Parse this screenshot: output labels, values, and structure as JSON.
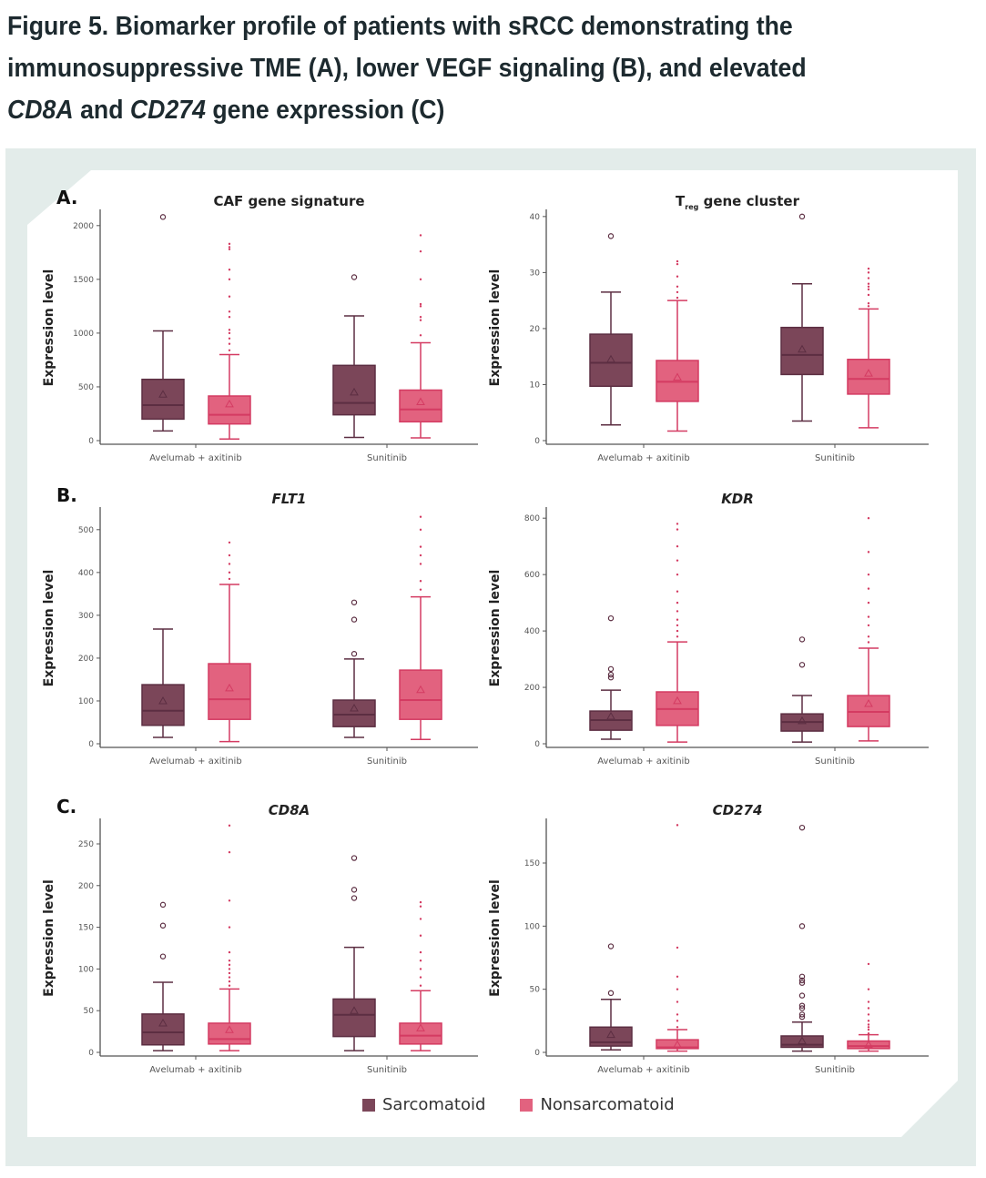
{
  "figure_title": {
    "line1": "Figure 5. Biomarker profile of patients with sRCC demonstrating the",
    "line2": "immunosuppressive TME (A), lower VEGF signaling (B), and elevated",
    "line3_gene1": "CD8A",
    "line3_mid": " and ",
    "line3_gene2": "CD274",
    "line3_end": " gene expression (C)"
  },
  "colors": {
    "Sarcomatoid": {
      "fill": "#7b4659",
      "stroke": "#5c2e42"
    },
    "Nonsarcomatoid": {
      "fill": "#e2627f",
      "stroke": "#d43b62"
    },
    "panel_background": "#e3ecea"
  },
  "legend": {
    "items": [
      "Sarcomatoid",
      "Nonsarcomatoid"
    ],
    "placement": "bottom"
  },
  "chart_data": [
    {
      "type": "box",
      "panel_letter": "A.",
      "title": "CAF gene signature",
      "ylabel": "Expression level",
      "ylim": [
        0,
        2100
      ],
      "yticks": [
        0,
        500,
        1000,
        1500,
        2000
      ],
      "categories": [
        "Avelumab + axitinib",
        "Sunitinib"
      ],
      "series": [
        {
          "name": "Sarcomatoid",
          "boxes": [
            {
              "low": 90,
              "q1": 200,
              "median": 330,
              "q3": 570,
              "high": 1020,
              "mean": 430,
              "outliers": [
                2080
              ]
            },
            {
              "low": 30,
              "q1": 240,
              "median": 350,
              "q3": 700,
              "high": 1160,
              "mean": 450,
              "outliers": [
                1520
              ]
            }
          ]
        },
        {
          "name": "Nonsarcomatoid",
          "boxes": [
            {
              "low": 15,
              "q1": 155,
              "median": 240,
              "q3": 415,
              "high": 800,
              "mean": 340,
              "outliers": [
                840,
                900,
                950,
                1000,
                1030,
                1150,
                1200,
                1340,
                1500,
                1590,
                1780,
                1800,
                1830
              ]
            },
            {
              "low": 25,
              "q1": 175,
              "median": 290,
              "q3": 470,
              "high": 910,
              "mean": 360,
              "outliers": [
                980,
                1120,
                1150,
                1250,
                1270,
                1500,
                1760,
                1910
              ]
            }
          ]
        }
      ]
    },
    {
      "type": "box",
      "panel_letter": "",
      "title": "T",
      "title_sub": "reg",
      "title_rest": " gene cluster",
      "ylabel": "Expression level",
      "ylim": [
        0,
        40.3
      ],
      "yticks": [
        0,
        10,
        20,
        30,
        40
      ],
      "categories": [
        "Avelumab + axitinib",
        "Sunitinib"
      ],
      "series": [
        {
          "name": "Sarcomatoid",
          "boxes": [
            {
              "low": 2.8,
              "q1": 9.7,
              "median": 13.9,
              "q3": 19,
              "high": 26.5,
              "mean": 14.5,
              "outliers": [
                36.5
              ]
            },
            {
              "low": 3.5,
              "q1": 11.8,
              "median": 15.3,
              "q3": 20.2,
              "high": 28,
              "mean": 16.3,
              "outliers": [
                40
              ]
            }
          ]
        },
        {
          "name": "Nonsarcomatoid",
          "boxes": [
            {
              "low": 1.7,
              "q1": 7,
              "median": 10.5,
              "q3": 14.3,
              "high": 25,
              "mean": 11.3,
              "outliers": [
                25.5,
                26.5,
                27.5,
                29.3,
                31.5,
                32
              ]
            },
            {
              "low": 2.3,
              "q1": 8.3,
              "median": 11,
              "q3": 14.5,
              "high": 23.5,
              "mean": 12,
              "outliers": [
                24,
                24.5,
                26,
                27,
                27.5,
                28,
                29,
                30,
                30.7
              ]
            }
          ]
        }
      ]
    },
    {
      "type": "box",
      "panel_letter": "B.",
      "title": "FLT1",
      "title_italic": true,
      "ylabel": "Expression level",
      "ylim": [
        0,
        540
      ],
      "yticks": [
        0,
        100,
        200,
        300,
        400,
        500
      ],
      "categories": [
        "Avelumab + axitinib",
        "Sunitinib"
      ],
      "series": [
        {
          "name": "Sarcomatoid",
          "boxes": [
            {
              "low": 15,
              "q1": 43,
              "median": 77,
              "q3": 138,
              "high": 268,
              "mean": 100,
              "outliers": []
            },
            {
              "low": 15,
              "q1": 40,
              "median": 68,
              "q3": 102,
              "high": 198,
              "mean": 83,
              "outliers": [
                210,
                290,
                330
              ]
            }
          ]
        },
        {
          "name": "Nonsarcomatoid",
          "boxes": [
            {
              "low": 5,
              "q1": 57,
              "median": 104,
              "q3": 187,
              "high": 372,
              "mean": 130,
              "outliers": [
                385,
                400,
                420,
                440,
                470
              ]
            },
            {
              "low": 10,
              "q1": 57,
              "median": 102,
              "q3": 172,
              "high": 343,
              "mean": 126,
              "outliers": [
                360,
                380,
                420,
                440,
                460,
                500,
                530
              ]
            }
          ]
        }
      ]
    },
    {
      "type": "box",
      "panel_letter": "",
      "title": "KDR",
      "title_italic": true,
      "ylabel": "Expression level",
      "ylim": [
        0,
        820
      ],
      "yticks": [
        0,
        200,
        400,
        600,
        800
      ],
      "categories": [
        "Avelumab + axitinib",
        "Sunitinib"
      ],
      "series": [
        {
          "name": "Sarcomatoid",
          "boxes": [
            {
              "low": 16,
              "q1": 48,
              "median": 84,
              "q3": 116,
              "high": 190,
              "mean": 97,
              "outliers": [
                235,
                245,
                265,
                445
              ]
            },
            {
              "low": 6,
              "q1": 45,
              "median": 77,
              "q3": 106,
              "high": 171,
              "mean": 81,
              "outliers": [
                280,
                370
              ]
            }
          ]
        },
        {
          "name": "Nonsarcomatoid",
          "boxes": [
            {
              "low": 6,
              "q1": 65,
              "median": 123,
              "q3": 184,
              "high": 361,
              "mean": 152,
              "outliers": [
                380,
                400,
                420,
                440,
                470,
                500,
                540,
                600,
                650,
                700,
                760,
                780
              ]
            },
            {
              "low": 10,
              "q1": 61,
              "median": 113,
              "q3": 171,
              "high": 339,
              "mean": 142,
              "outliers": [
                360,
                380,
                420,
                450,
                500,
                550,
                600,
                680,
                800
              ]
            }
          ]
        }
      ]
    },
    {
      "type": "box",
      "panel_letter": "C.",
      "title": "CD8A",
      "title_italic": true,
      "ylabel": "Expression level",
      "ylim": [
        0,
        274
      ],
      "yticks": [
        0,
        50,
        100,
        150,
        200,
        250
      ],
      "categories": [
        "Avelumab + axitinib",
        "Sunitinib"
      ],
      "series": [
        {
          "name": "Sarcomatoid",
          "boxes": [
            {
              "low": 2,
              "q1": 9,
              "median": 24,
              "q3": 46,
              "high": 84,
              "mean": 35,
              "outliers": [
                115,
                152,
                177
              ]
            },
            {
              "low": 2,
              "q1": 19,
              "median": 45,
              "q3": 64,
              "high": 126,
              "mean": 50,
              "outliers": [
                185,
                195,
                233
              ]
            }
          ]
        },
        {
          "name": "Nonsarcomatoid",
          "boxes": [
            {
              "low": 2,
              "q1": 10,
              "median": 16,
              "q3": 35,
              "high": 76,
              "mean": 27,
              "outliers": [
                80,
                85,
                90,
                95,
                100,
                105,
                110,
                120,
                150,
                182,
                240,
                272
              ]
            },
            {
              "low": 2,
              "q1": 10,
              "median": 20,
              "q3": 35,
              "high": 74,
              "mean": 29,
              "outliers": [
                80,
                90,
                100,
                110,
                120,
                140,
                160,
                175,
                180
              ]
            }
          ]
        }
      ]
    },
    {
      "type": "box",
      "panel_letter": "",
      "title": "CD274",
      "title_italic": true,
      "ylabel": "Expression level",
      "ylim": [
        0,
        181
      ],
      "yticks": [
        0,
        50,
        100,
        150
      ],
      "categories": [
        "Avelumab + axitinib",
        "Sunitinib"
      ],
      "series": [
        {
          "name": "Sarcomatoid",
          "boxes": [
            {
              "low": 2,
              "q1": 5,
              "median": 8,
              "q3": 20,
              "high": 42,
              "mean": 14,
              "outliers": [
                47,
                84
              ]
            },
            {
              "low": 1,
              "q1": 4,
              "median": 6,
              "q3": 13,
              "high": 24,
              "mean": 9,
              "outliers": [
                28,
                30,
                35,
                37,
                45,
                55,
                57,
                60,
                100,
                178
              ]
            }
          ]
        },
        {
          "name": "Nonsarcomatoid",
          "boxes": [
            {
              "low": 1,
              "q1": 3,
              "median": 4,
              "q3": 10,
              "high": 18,
              "mean": 6,
              "outliers": [
                20,
                25,
                30,
                40,
                50,
                60,
                83,
                180
              ]
            },
            {
              "low": 1,
              "q1": 3,
              "median": 5,
              "q3": 9,
              "high": 14,
              "mean": 6,
              "outliers": [
                15,
                18,
                20,
                22,
                25,
                30,
                35,
                40,
                50,
                70
              ]
            }
          ]
        }
      ]
    }
  ]
}
